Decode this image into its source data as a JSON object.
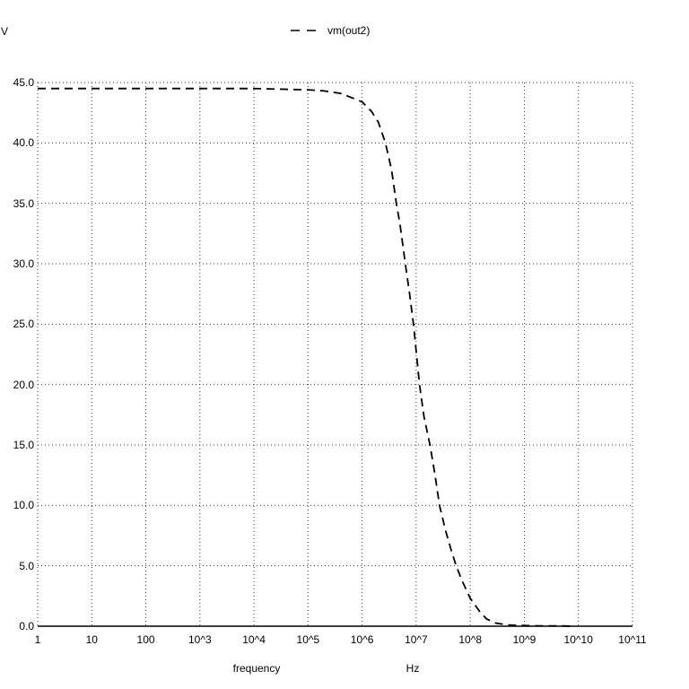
{
  "colors": {
    "background": "#ffffff",
    "trace": "#000000",
    "grid": "#3a3a3a",
    "axis": "#000000",
    "text": "#000000"
  },
  "y_axis_unit": "V",
  "legend": {
    "series_label": "vm(out2)"
  },
  "xlabel": "frequency",
  "x_unit": "Hz",
  "chart_data": {
    "type": "line",
    "title": "",
    "x_scale": "log",
    "y_scale": "linear",
    "xlim": [
      1,
      100000000000
    ],
    "ylim": [
      0,
      45
    ],
    "grid": "dotted",
    "legend_position": "top-center",
    "x_ticks": [
      {
        "label": "1",
        "value": 1
      },
      {
        "label": "10",
        "value": 10
      },
      {
        "label": "100",
        "value": 100
      },
      {
        "label": "10^3",
        "value": 1000
      },
      {
        "label": "10^4",
        "value": 10000
      },
      {
        "label": "10^5",
        "value": 100000
      },
      {
        "label": "10^6",
        "value": 1000000
      },
      {
        "label": "10^7",
        "value": 10000000
      },
      {
        "label": "10^8",
        "value": 100000000
      },
      {
        "label": "10^9",
        "value": 1000000000
      },
      {
        "label": "10^10",
        "value": 10000000000
      },
      {
        "label": "10^11",
        "value": 100000000000
      }
    ],
    "y_ticks": [
      {
        "label": "0.0",
        "value": 0
      },
      {
        "label": "5.0",
        "value": 5
      },
      {
        "label": "10.0",
        "value": 10
      },
      {
        "label": "15.0",
        "value": 15
      },
      {
        "label": "20.0",
        "value": 20
      },
      {
        "label": "25.0",
        "value": 25
      },
      {
        "label": "30.0",
        "value": 30
      },
      {
        "label": "35.0",
        "value": 35
      },
      {
        "label": "40.0",
        "value": 40
      },
      {
        "label": "45.0",
        "value": 45
      }
    ],
    "series": [
      {
        "name": "vm(out2)",
        "line_style": "dashed",
        "color": "#000000",
        "points": [
          [
            1,
            44.5
          ],
          [
            10,
            44.5
          ],
          [
            100,
            44.5
          ],
          [
            1000,
            44.5
          ],
          [
            10000,
            44.5
          ],
          [
            100000,
            44.4
          ],
          [
            200000,
            44.3
          ],
          [
            400000,
            44.1
          ],
          [
            600000,
            43.8
          ],
          [
            1000000,
            43.4
          ],
          [
            1500000,
            42.6
          ],
          [
            2000000,
            41.7
          ],
          [
            2700000,
            40.0
          ],
          [
            3500000,
            37.8
          ],
          [
            4300000,
            35.0
          ],
          [
            5000000,
            33.3
          ],
          [
            6300000,
            30.0
          ],
          [
            7500000,
            27.6
          ],
          [
            8900000,
            25.0
          ],
          [
            11500000,
            20.0
          ],
          [
            14000000,
            17.3
          ],
          [
            18000000,
            15.0
          ],
          [
            22000000,
            12.7
          ],
          [
            27000000,
            10.0
          ],
          [
            35000000,
            7.9
          ],
          [
            45000000,
            6.2
          ],
          [
            55000000,
            5.0
          ],
          [
            70000000,
            3.8
          ],
          [
            100000000,
            2.3
          ],
          [
            150000000,
            1.2
          ],
          [
            200000000,
            0.6
          ],
          [
            300000000,
            0.25
          ],
          [
            500000000,
            0.1
          ],
          [
            1000000000,
            0.05
          ],
          [
            2000000000,
            0.03
          ],
          [
            5000000000,
            0.02
          ],
          [
            7500000000,
            0.0
          ]
        ]
      }
    ]
  }
}
